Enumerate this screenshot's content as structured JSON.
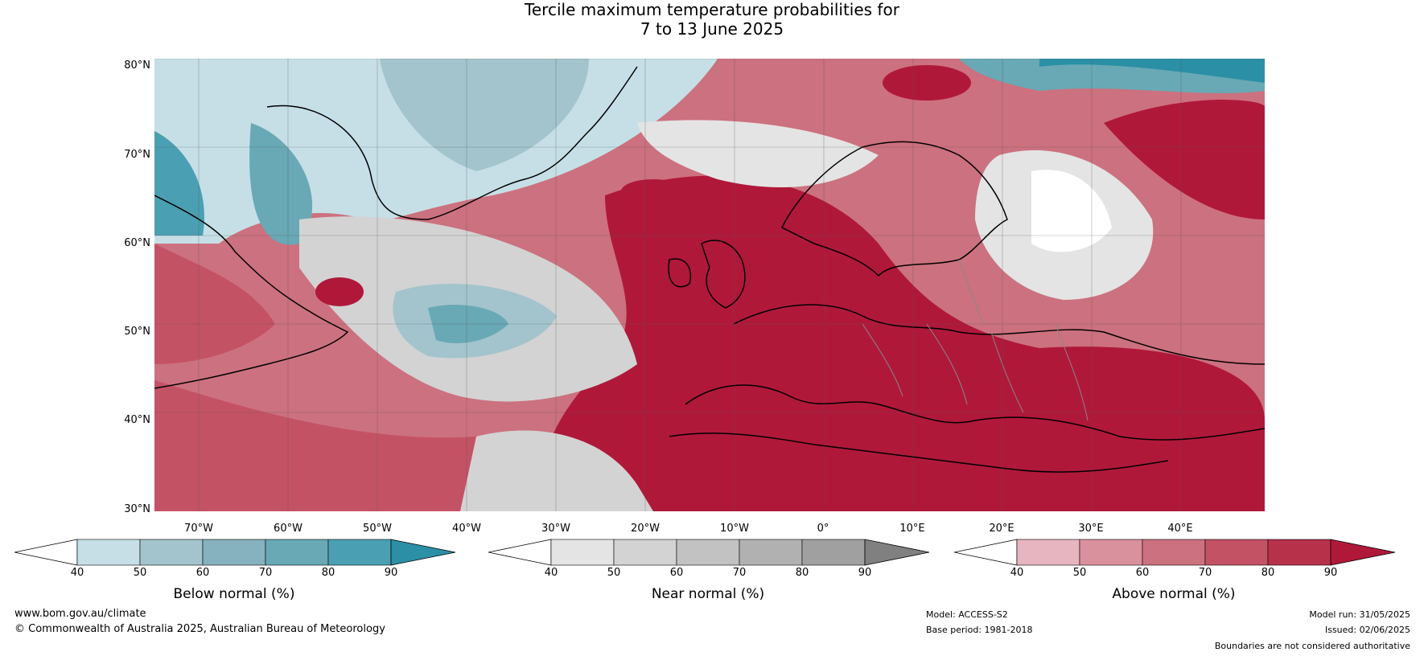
{
  "title": {
    "line1": "Tercile maximum temperature probabilities for",
    "line2": "7 to 13 June 2025"
  },
  "axes": {
    "lat_labels": [
      "80°N",
      "70°N",
      "60°N",
      "50°N",
      "40°N",
      "30°N"
    ],
    "lon_labels": [
      "70°W",
      "60°W",
      "50°W",
      "40°W",
      "30°W",
      "20°W",
      "10°W",
      "0°",
      "10°E",
      "20°E",
      "30°E",
      "40°E"
    ]
  },
  "colorbars": {
    "below": {
      "title": "Below normal (%)",
      "ticks": [
        "40",
        "50",
        "60",
        "70",
        "80",
        "90"
      ],
      "colors": [
        "#ffffff",
        "#c6dfe6",
        "#a3c4cc",
        "#86b1be",
        "#68a9b5",
        "#4aa0b2",
        "#2b8fa5"
      ]
    },
    "near": {
      "title": "Near normal (%)",
      "ticks": [
        "40",
        "50",
        "60",
        "70",
        "80",
        "90"
      ],
      "colors": [
        "#ffffff",
        "#e4e4e4",
        "#d3d3d3",
        "#c2c2c2",
        "#b1b1b1",
        "#a0a0a0",
        "#808080"
      ]
    },
    "above": {
      "title": "Above normal (%)",
      "ticks": [
        "40",
        "50",
        "60",
        "70",
        "80",
        "90"
      ],
      "colors": [
        "#ffffff",
        "#e6b5bf",
        "#d9919e",
        "#cc717f",
        "#c45265",
        "#b8314a",
        "#b0183a"
      ]
    }
  },
  "footer": {
    "website": "www.bom.gov.au/climate",
    "copyright": "© Commonwealth of Australia 2025, Australian Bureau of Meteorology",
    "model": "Model: ACCESS-S2",
    "base_period": "Base period: 1981-2018",
    "model_run": "Model run: 31/05/2025",
    "issued": "Issued: 02/06/2025",
    "disclaimer": "Boundaries are not considered authoritative"
  },
  "map_colors": {
    "ocean_red": "#b0183a",
    "coast": "#000000",
    "border": "#888888"
  }
}
